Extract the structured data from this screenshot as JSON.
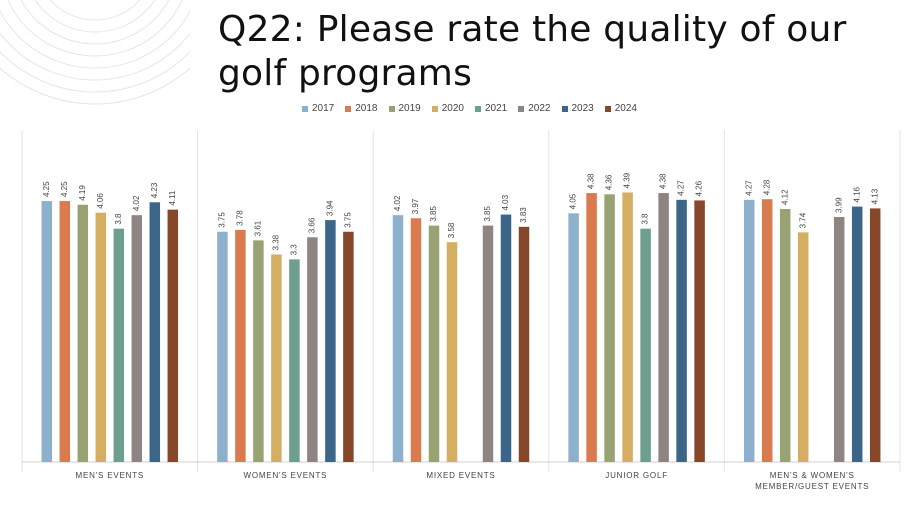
{
  "title": "Q22: Please rate the quality of our golf programs",
  "chart_data": {
    "type": "bar",
    "title": "Q22: Please rate the quality of our golf programs",
    "xlabel": "",
    "ylabel": "",
    "ylim": [
      0,
      4.6
    ],
    "legend_position": "top",
    "categories": [
      [
        "MEN'S EVENTS"
      ],
      [
        "WOMEN'S EVENTS"
      ],
      [
        "MIXED EVENTS"
      ],
      [
        "JUNIOR GOLF"
      ],
      [
        "MEN'S & WOMEN'S",
        "MEMBER/GUEST EVENTS"
      ]
    ],
    "series": [
      {
        "name": "2017",
        "color": "#8DB0CD",
        "values": [
          4.25,
          3.75,
          4.02,
          4.05,
          4.27
        ]
      },
      {
        "name": "2018",
        "color": "#DA7A4F",
        "values": [
          4.25,
          3.78,
          3.97,
          4.38,
          4.28
        ]
      },
      {
        "name": "2019",
        "color": "#98A273",
        "values": [
          4.19,
          3.61,
          3.85,
          4.36,
          4.12
        ]
      },
      {
        "name": "2020",
        "color": "#D4AE61",
        "values": [
          4.06,
          3.38,
          3.58,
          4.39,
          3.74
        ]
      },
      {
        "name": "2021",
        "color": "#6E9E8E",
        "values": [
          3.8,
          3.3,
          null,
          3.8,
          null
        ]
      },
      {
        "name": "2022",
        "color": "#8E8582",
        "values": [
          4.02,
          3.66,
          3.85,
          4.38,
          3.99
        ]
      },
      {
        "name": "2023",
        "color": "#3C6688",
        "values": [
          4.23,
          3.94,
          4.03,
          4.27,
          4.16
        ]
      },
      {
        "name": "2024",
        "color": "#86472A",
        "values": [
          4.11,
          3.75,
          3.83,
          4.26,
          4.13
        ]
      }
    ]
  }
}
